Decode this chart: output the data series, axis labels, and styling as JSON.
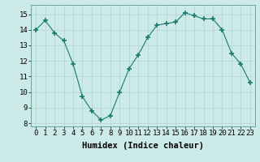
{
  "x": [
    0,
    1,
    2,
    3,
    4,
    5,
    6,
    7,
    8,
    9,
    10,
    11,
    12,
    13,
    14,
    15,
    16,
    17,
    18,
    19,
    20,
    21,
    22,
    23
  ],
  "y": [
    14.0,
    14.6,
    13.8,
    13.3,
    11.8,
    9.7,
    8.8,
    8.2,
    8.5,
    10.0,
    11.5,
    12.4,
    13.5,
    14.3,
    14.4,
    14.5,
    15.1,
    14.9,
    14.7,
    14.7,
    14.0,
    12.5,
    11.8,
    10.6
  ],
  "line_color": "#1a7a6e",
  "marker": "+",
  "marker_size": 4,
  "bg_color": "#cceae7",
  "grid_color": "#b8d8d4",
  "xlabel": "Humidex (Indice chaleur)",
  "ylim": [
    7.8,
    15.6
  ],
  "xlim": [
    -0.5,
    23.5
  ],
  "yticks": [
    8,
    9,
    10,
    11,
    12,
    13,
    14,
    15
  ],
  "xticks": [
    0,
    1,
    2,
    3,
    4,
    5,
    6,
    7,
    8,
    9,
    10,
    11,
    12,
    13,
    14,
    15,
    16,
    17,
    18,
    19,
    20,
    21,
    22,
    23
  ],
  "tick_label_fontsize": 6.5,
  "xlabel_fontsize": 7.5
}
